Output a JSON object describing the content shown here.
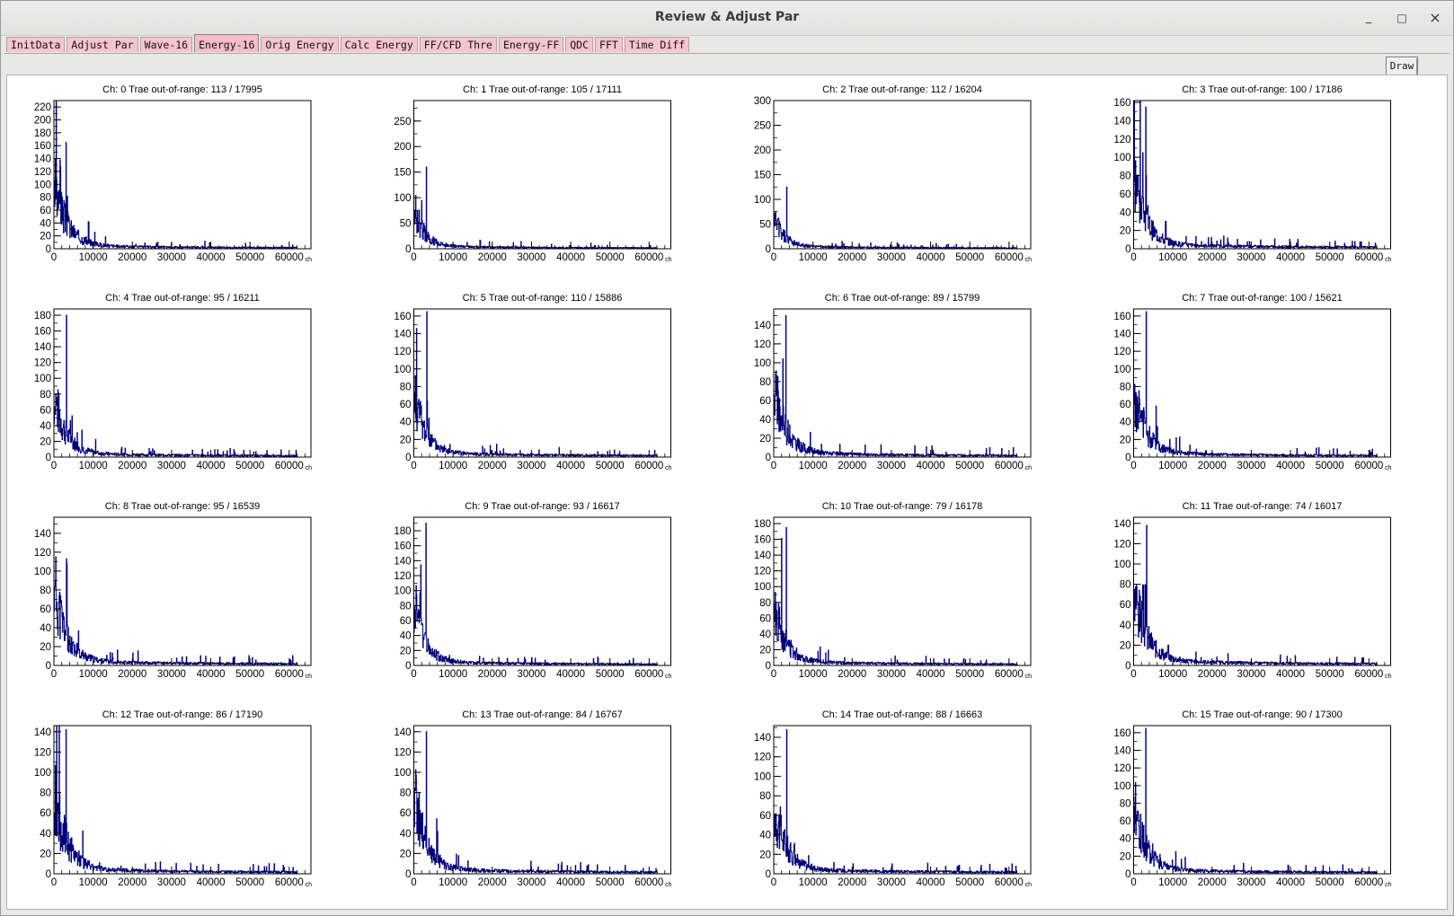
{
  "window": {
    "title": "Review & Adjust Par"
  },
  "window_controls": {
    "minimize": "_",
    "maximize": "□",
    "close": "×"
  },
  "tabs": [
    {
      "label": "InitData",
      "active": false
    },
    {
      "label": "Adjust Par",
      "active": false
    },
    {
      "label": "Wave-16",
      "active": false
    },
    {
      "label": "Energy-16",
      "active": true
    },
    {
      "label": "Orig Energy",
      "active": false
    },
    {
      "label": "Calc Energy",
      "active": false
    },
    {
      "label": "FF/CFD Thre",
      "active": false
    },
    {
      "label": "Energy-FF",
      "active": false
    },
    {
      "label": "QDC",
      "active": false
    },
    {
      "label": "FFT",
      "active": false
    },
    {
      "label": "Time Diff",
      "active": false
    }
  ],
  "toolbar": {
    "draw_label": "Draw"
  },
  "colors": {
    "hist": "#00007a",
    "tab": "#f7c5cd"
  },
  "chart_data": {
    "type": "histogram-grid",
    "rows": 4,
    "cols": 4,
    "x_unit": "ch",
    "x_ticks": [
      0,
      10000,
      20000,
      30000,
      40000,
      50000,
      60000
    ],
    "xlim": [
      0,
      65536
    ],
    "panels": [
      {
        "title": "Ch: 0   Trae out-of-range: 113 / 17995",
        "ylim": [
          0,
          230
        ],
        "yticks": [
          0,
          20,
          40,
          60,
          80,
          100,
          120,
          140,
          160,
          180,
          200,
          220
        ],
        "peak": 165,
        "start": 100,
        "decay": 0.55,
        "extra": [
          [
            8800,
            42
          ]
        ]
      },
      {
        "title": "Ch: 1   Trae out-of-range: 105 / 17111",
        "ylim": [
          0,
          290
        ],
        "yticks": [
          0,
          50,
          100,
          150,
          200,
          250
        ],
        "peak": 160,
        "start": 80,
        "decay": 0.7,
        "extra": []
      },
      {
        "title": "Ch: 2   Trae out-of-range: 112 / 16204",
        "ylim": [
          0,
          300
        ],
        "yticks": [
          0,
          50,
          100,
          150,
          200,
          250,
          300
        ],
        "peak": 125,
        "start": 60,
        "decay": 0.7,
        "extra": []
      },
      {
        "title": "Ch: 3   Trae out-of-range: 100 / 17186",
        "ylim": [
          0,
          162
        ],
        "yticks": [
          0,
          20,
          40,
          60,
          80,
          100,
          120,
          140,
          160
        ],
        "peak": 155,
        "start": 80,
        "decay": 0.6,
        "extra": [
          [
            8200,
            30
          ]
        ]
      },
      {
        "title": "Ch: 4   Trae out-of-range: 95 / 16211",
        "ylim": [
          0,
          188
        ],
        "yticks": [
          0,
          20,
          40,
          60,
          80,
          100,
          120,
          140,
          160,
          180
        ],
        "peak": 180,
        "start": 75,
        "decay": 0.6,
        "extra": []
      },
      {
        "title": "Ch: 5   Trae out-of-range: 110 / 15886",
        "ylim": [
          0,
          168
        ],
        "yticks": [
          0,
          20,
          40,
          60,
          80,
          100,
          120,
          140,
          160
        ],
        "peak": 165,
        "start": 70,
        "decay": 0.65,
        "extra": []
      },
      {
        "title": "Ch: 6   Trae out-of-range: 89 / 15799",
        "ylim": [
          0,
          157
        ],
        "yticks": [
          0,
          20,
          40,
          60,
          80,
          100,
          120,
          140
        ],
        "peak": 150,
        "start": 72,
        "decay": 0.6,
        "extra": []
      },
      {
        "title": "Ch: 7   Trae out-of-range: 100 / 15621",
        "ylim": [
          0,
          168
        ],
        "yticks": [
          0,
          20,
          40,
          60,
          80,
          100,
          120,
          140,
          160
        ],
        "peak": 165,
        "start": 75,
        "decay": 0.6,
        "extra": []
      },
      {
        "title": "Ch: 8   Trae out-of-range: 95 / 16539",
        "ylim": [
          0,
          157
        ],
        "yticks": [
          0,
          20,
          40,
          60,
          80,
          100,
          120,
          140
        ],
        "peak": 108,
        "start": 85,
        "decay": 0.6,
        "extra": []
      },
      {
        "title": "Ch: 9   Trae out-of-range: 93 / 16617",
        "ylim": [
          0,
          198
        ],
        "yticks": [
          0,
          20,
          40,
          60,
          80,
          100,
          120,
          140,
          160,
          180
        ],
        "peak": 190,
        "start": 80,
        "decay": 0.65,
        "extra": []
      },
      {
        "title": "Ch: 10   Trae out-of-range: 79 / 16178",
        "ylim": [
          0,
          188
        ],
        "yticks": [
          0,
          20,
          40,
          60,
          80,
          100,
          120,
          140,
          160,
          180
        ],
        "peak": 175,
        "start": 75,
        "decay": 0.6,
        "extra": []
      },
      {
        "title": "Ch: 11   Trae out-of-range: 74 / 16017",
        "ylim": [
          0,
          146
        ],
        "yticks": [
          0,
          20,
          40,
          60,
          80,
          100,
          120,
          140
        ],
        "peak": 138,
        "start": 70,
        "decay": 0.55,
        "extra": [
          [
            8800,
            20
          ]
        ]
      },
      {
        "title": "Ch: 12   Trae out-of-range: 86 / 17190",
        "ylim": [
          0,
          146
        ],
        "yticks": [
          0,
          20,
          40,
          60,
          80,
          100,
          120,
          140
        ],
        "peak": 142,
        "start": 75,
        "decay": 0.55,
        "extra": []
      },
      {
        "title": "Ch: 13   Trae out-of-range: 84 / 16767",
        "ylim": [
          0,
          146
        ],
        "yticks": [
          0,
          20,
          40,
          60,
          80,
          100,
          120,
          140
        ],
        "peak": 140,
        "start": 85,
        "decay": 0.65,
        "extra": []
      },
      {
        "title": "Ch: 14   Trae out-of-range: 88 / 16663",
        "ylim": [
          0,
          152
        ],
        "yticks": [
          0,
          20,
          40,
          60,
          80,
          100,
          120,
          140
        ],
        "peak": 148,
        "start": 70,
        "decay": 0.6,
        "extra": []
      },
      {
        "title": "Ch: 15   Trae out-of-range: 90 / 17300",
        "ylim": [
          0,
          168
        ],
        "yticks": [
          0,
          20,
          40,
          60,
          80,
          100,
          120,
          140,
          160
        ],
        "peak": 165,
        "start": 75,
        "decay": 0.6,
        "extra": []
      }
    ]
  }
}
